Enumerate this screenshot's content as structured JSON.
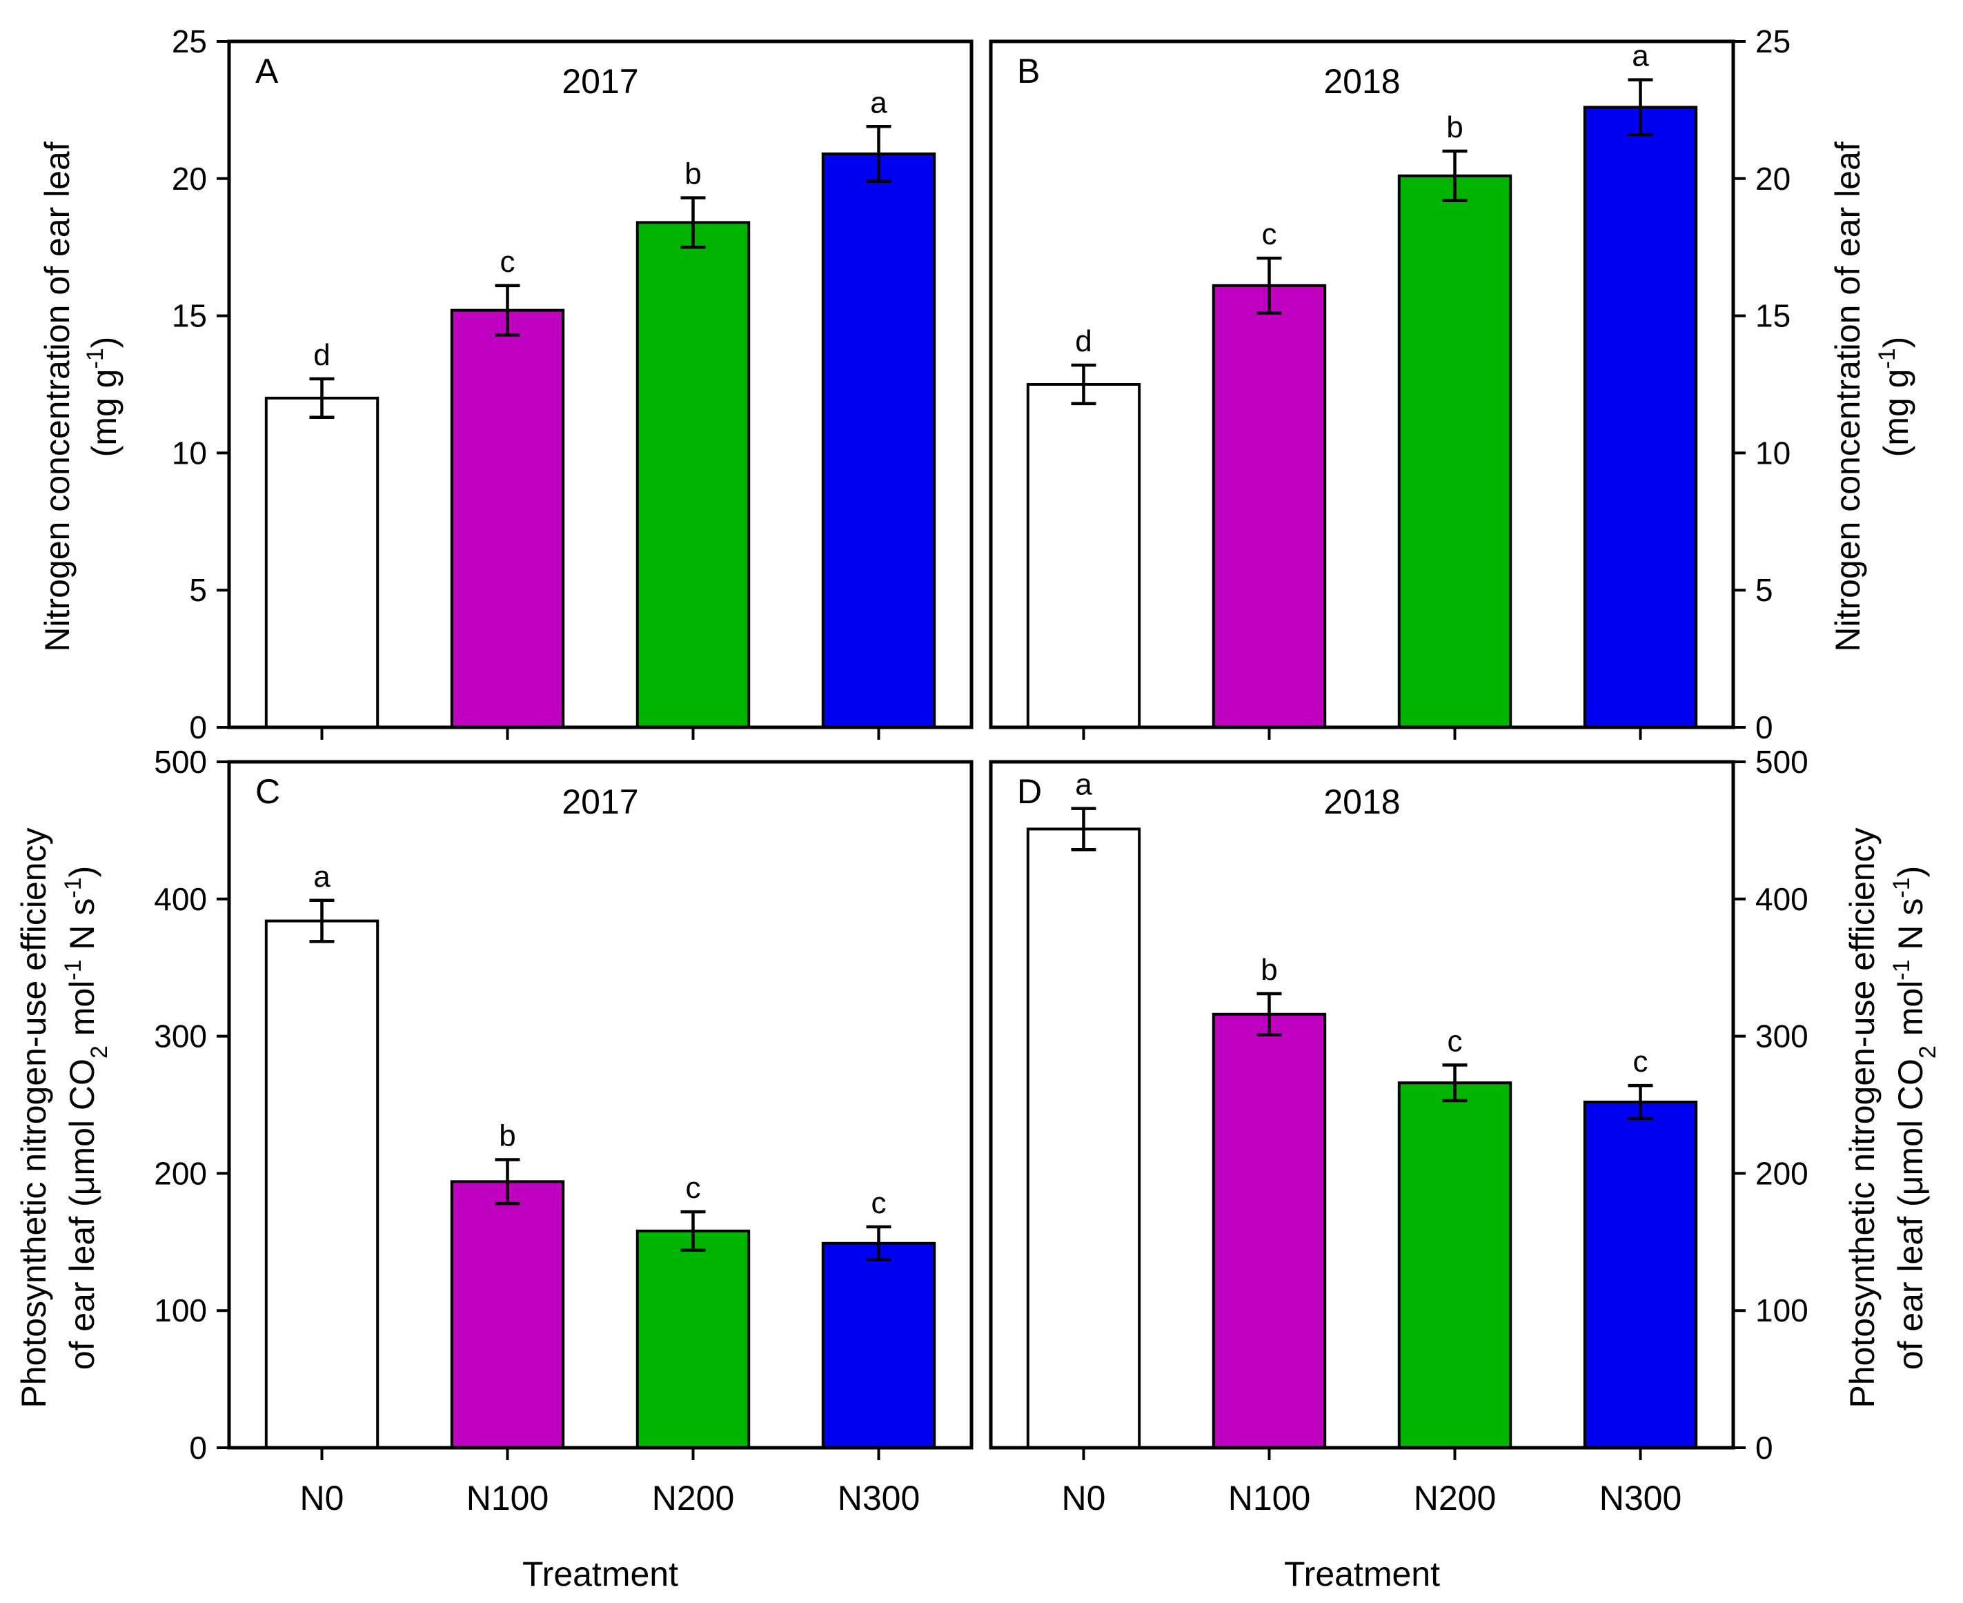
{
  "chart_data": [
    {
      "panel": "A",
      "type": "bar",
      "title": "2017",
      "categories": [
        "N0",
        "N100",
        "N200",
        "N300"
      ],
      "values": [
        12.0,
        15.2,
        18.4,
        20.9
      ],
      "errors": [
        0.7,
        0.9,
        0.9,
        1.0
      ],
      "significance": [
        "d",
        "c",
        "b",
        "a"
      ],
      "colors": [
        "#ffffff",
        "#c000c0",
        "#00b400",
        "#0000f0"
      ],
      "ylim": [
        0,
        25
      ],
      "yticks": [
        "0",
        "5",
        "10",
        "15",
        "20",
        "25"
      ],
      "ytick_values": [
        0,
        5,
        10,
        15,
        20,
        25
      ],
      "yaxis_side": "left",
      "show_xticklabels": false,
      "xlabel": ""
    },
    {
      "panel": "B",
      "type": "bar",
      "title": "2018",
      "categories": [
        "N0",
        "N100",
        "N200",
        "N300"
      ],
      "values": [
        12.5,
        16.1,
        20.1,
        22.6
      ],
      "errors": [
        0.7,
        1.0,
        0.9,
        1.0
      ],
      "significance": [
        "d",
        "c",
        "b",
        "a"
      ],
      "colors": [
        "#ffffff",
        "#c000c0",
        "#00b400",
        "#0000f0"
      ],
      "ylim": [
        0,
        25
      ],
      "yticks": [
        "0",
        "5",
        "10",
        "15",
        "20",
        "25"
      ],
      "ytick_values": [
        0,
        5,
        10,
        15,
        20,
        25
      ],
      "yaxis_side": "right",
      "show_xticklabels": false,
      "xlabel": ""
    },
    {
      "panel": "C",
      "type": "bar",
      "title": "2017",
      "categories": [
        "N0",
        "N100",
        "N200",
        "N300"
      ],
      "values": [
        384,
        194,
        158,
        149
      ],
      "errors": [
        15,
        16,
        14,
        12
      ],
      "significance": [
        "a",
        "b",
        "c",
        "c"
      ],
      "colors": [
        "#ffffff",
        "#c000c0",
        "#00b400",
        "#0000f0"
      ],
      "ylim": [
        0,
        500
      ],
      "yticks": [
        "0",
        "100",
        "200",
        "300",
        "400",
        "500"
      ],
      "ytick_values": [
        0,
        100,
        200,
        300,
        400,
        500
      ],
      "yaxis_side": "left",
      "show_xticklabels": true,
      "xlabel": "Treatment"
    },
    {
      "panel": "D",
      "type": "bar",
      "title": "2018",
      "categories": [
        "N0",
        "N100",
        "N200",
        "N300"
      ],
      "values": [
        451,
        316,
        266,
        252
      ],
      "errors": [
        15,
        15,
        13,
        12
      ],
      "significance": [
        "a",
        "b",
        "c",
        "c"
      ],
      "colors": [
        "#ffffff",
        "#c000c0",
        "#00b400",
        "#0000f0"
      ],
      "ylim": [
        0,
        500
      ],
      "yticks": [
        "0",
        "100",
        "200",
        "300",
        "400",
        "500"
      ],
      "ytick_values": [
        0,
        100,
        200,
        300,
        400,
        500
      ],
      "yaxis_side": "right",
      "show_xticklabels": true,
      "xlabel": "Treatment"
    }
  ],
  "ylabels": {
    "top": {
      "line1": "Nitrogen concentration of ear leaf",
      "line2_pre": "(mg g",
      "line2_sup": "-1",
      "line2_post": ")"
    },
    "bottom": {
      "line1": "Photosynthetic nitrogen-use efficiency",
      "line2_pre": "of ear leaf (μmol CO",
      "line2_sub": "2",
      "line2_mid": " mol",
      "line2_sup1": "-1",
      "line2_n": " N s",
      "line2_sup2": "-1",
      "line2_post": ")"
    }
  }
}
